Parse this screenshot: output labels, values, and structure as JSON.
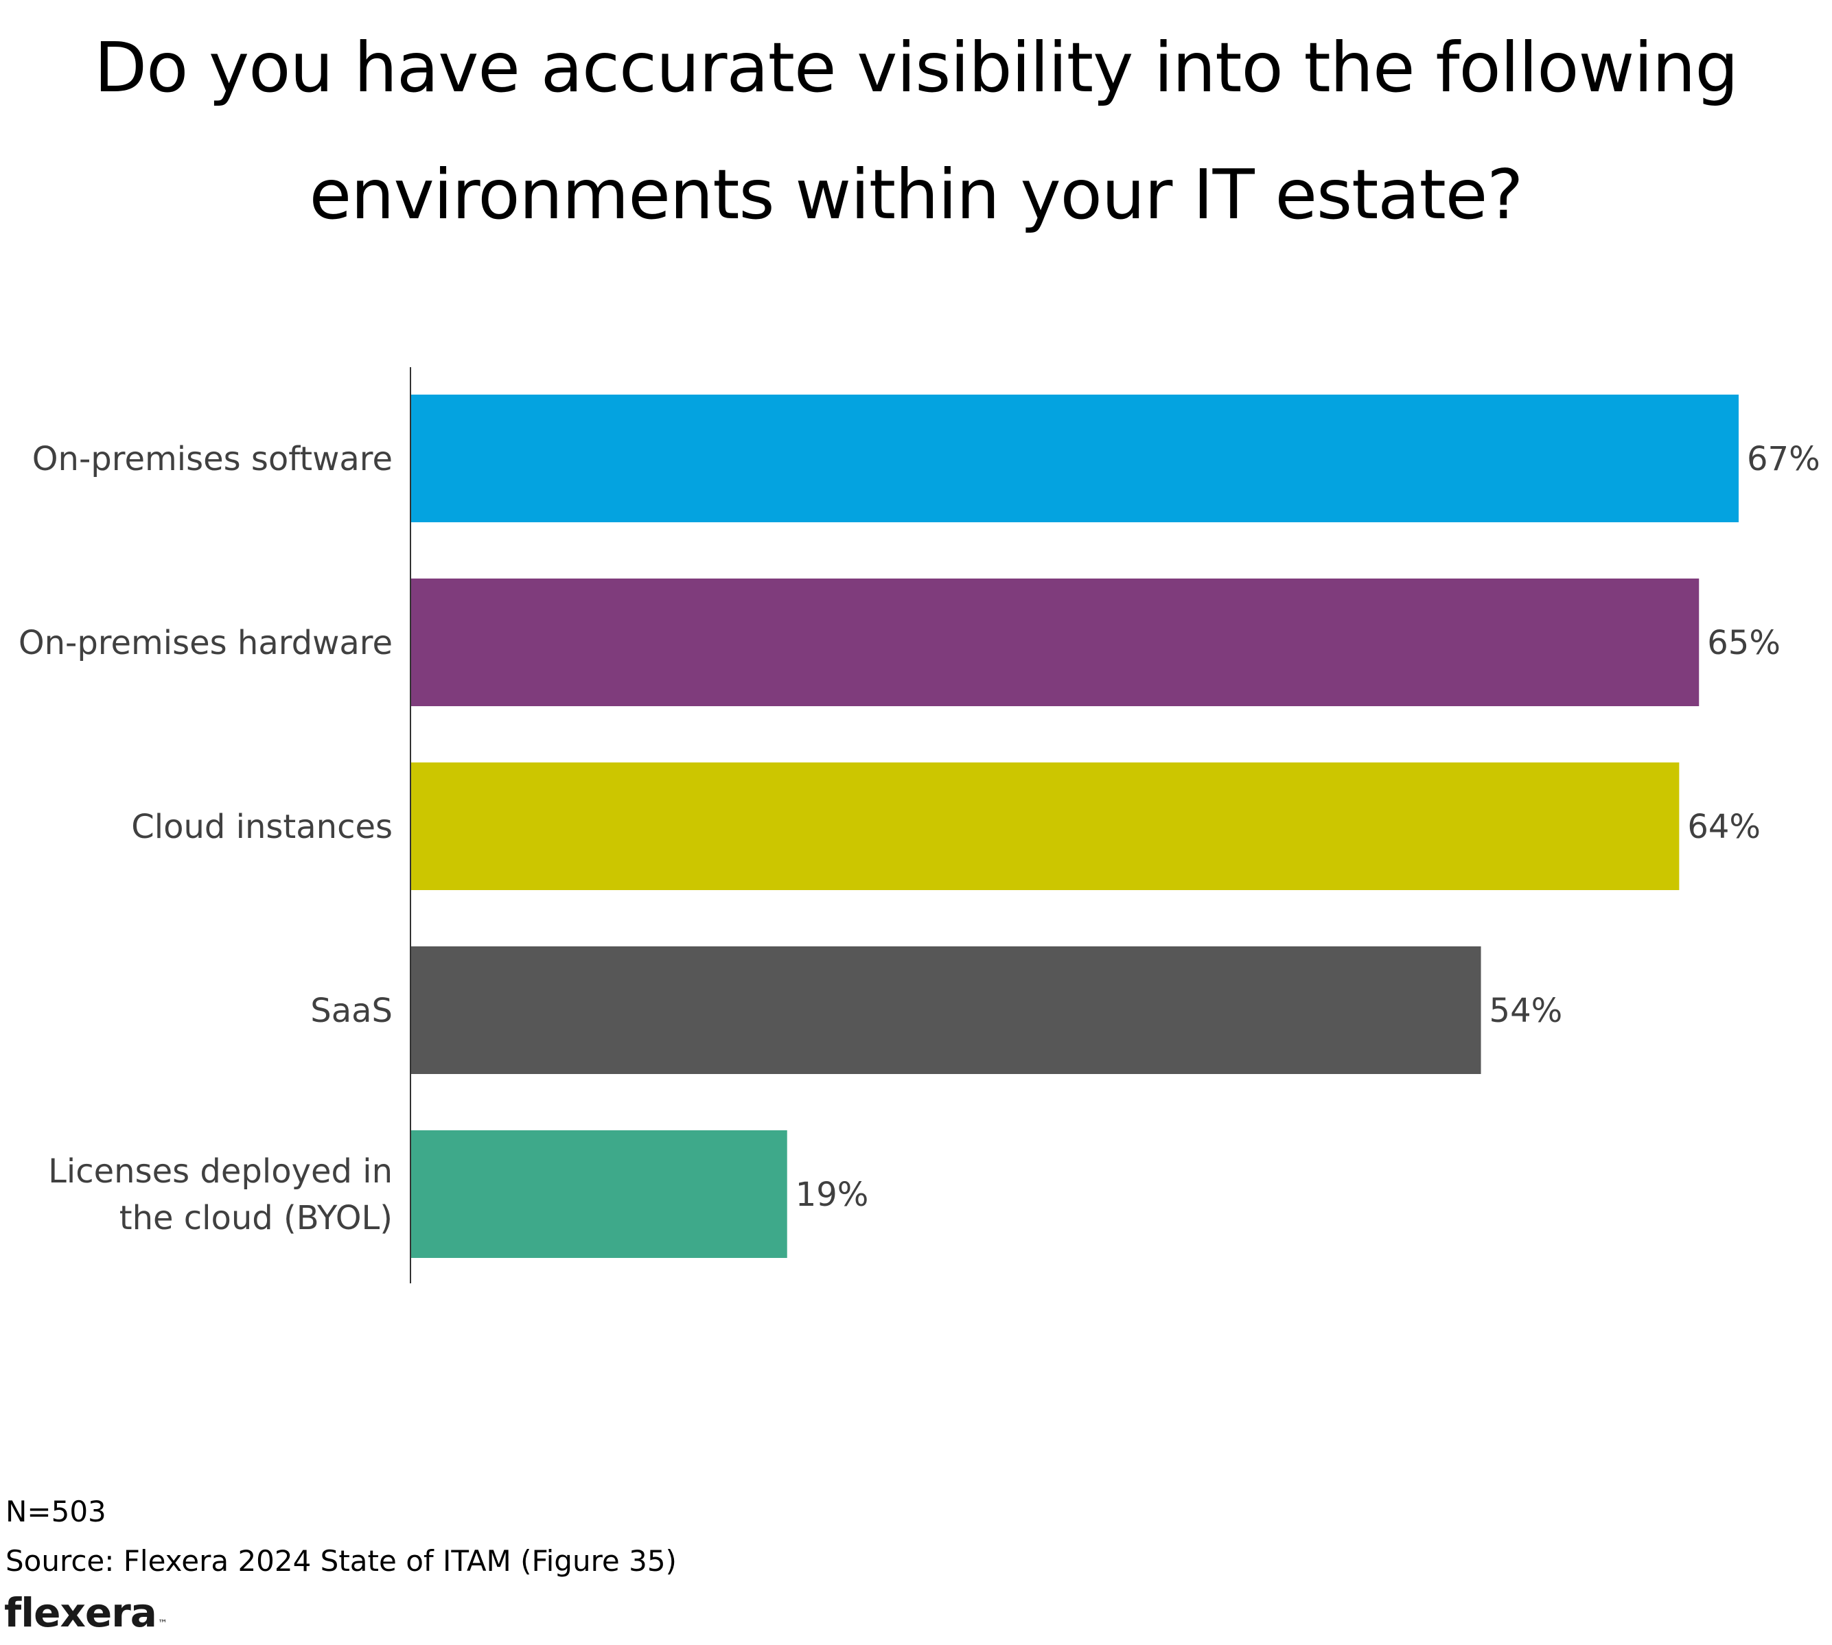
{
  "chart_data": {
    "type": "bar",
    "orientation": "horizontal",
    "title_lines": [
      "Do you have accurate visibility into the following",
      "environments within your IT estate?"
    ],
    "categories": [
      [
        "On-premises software"
      ],
      [
        "On-premises hardware"
      ],
      [
        "Cloud instances"
      ],
      [
        "SaaS"
      ],
      [
        "Licenses deployed in",
        "the cloud (BYOL)"
      ]
    ],
    "values": [
      67,
      65,
      64,
      54,
      19
    ],
    "value_labels": [
      "67%",
      "65%",
      "64%",
      "54%",
      "19%"
    ],
    "colors": [
      "#04A3E0",
      "#7F3C7C",
      "#CCC600",
      "#575757",
      "#3EA98A"
    ],
    "unit": "%",
    "xlim": [
      0,
      67
    ],
    "xlabel": "",
    "ylabel": "",
    "grid": false,
    "legend": "none"
  },
  "footer": {
    "n_note": "N=503",
    "source": "Source: Flexera 2024 State of ITAM (Figure 35)"
  },
  "logo": {
    "text": "flexera",
    "mark": "™"
  },
  "colors": {
    "axis": "#333333",
    "label_text": "#404040",
    "title_text": "#000000"
  }
}
